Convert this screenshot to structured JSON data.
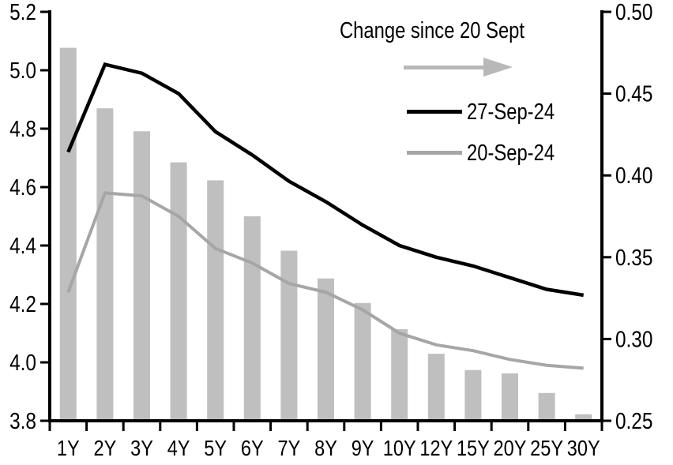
{
  "chart_data": {
    "type": "combo",
    "categories": [
      "1Y",
      "2Y",
      "3Y",
      "4Y",
      "5Y",
      "6Y",
      "7Y",
      "8Y",
      "9Y",
      "10Y",
      "12Y",
      "15Y",
      "20Y",
      "25Y",
      "30Y"
    ],
    "series": [
      {
        "name": "27-Sep-24",
        "type": "line",
        "axis": "left",
        "color": "#000000",
        "values": [
          4.72,
          5.02,
          4.99,
          4.92,
          4.79,
          4.71,
          4.62,
          4.55,
          4.47,
          4.4,
          4.36,
          4.33,
          4.29,
          4.25,
          4.23
        ]
      },
      {
        "name": "20-Sep-24",
        "type": "line",
        "axis": "left",
        "color": "#a6a6a6",
        "values": [
          4.24,
          4.58,
          4.57,
          4.5,
          4.39,
          4.34,
          4.27,
          4.24,
          4.18,
          4.1,
          4.06,
          4.04,
          4.01,
          3.99,
          3.98
        ]
      },
      {
        "name": "Change since 20 Sept",
        "type": "bar",
        "axis": "right",
        "color": "#bfbfbf",
        "values": [
          0.478,
          0.441,
          0.427,
          0.408,
          0.397,
          0.375,
          0.354,
          0.337,
          0.322,
          0.306,
          0.291,
          0.281,
          0.279,
          0.267,
          0.254
        ]
      }
    ],
    "left_axis": {
      "min": 3.8,
      "max": 5.2,
      "tick_labels": [
        "5.2",
        "5.0",
        "4.8",
        "4.6",
        "4.4",
        "4.2",
        "4.0",
        "3.8"
      ]
    },
    "right_axis": {
      "min": 0.25,
      "max": 0.5,
      "tick_labels": [
        "0.50",
        "0.45",
        "0.40",
        "0.35",
        "0.30",
        "0.25"
      ]
    },
    "legend": {
      "title": "Change since 20 Sept",
      "arrow_color": "#b8b8b8",
      "items": [
        {
          "label": "27-Sep-24",
          "color": "#000000"
        },
        {
          "label": "20-Sep-24",
          "color": "#a6a6a6"
        }
      ]
    },
    "grid": false,
    "legend_position": "top-right-inside"
  }
}
